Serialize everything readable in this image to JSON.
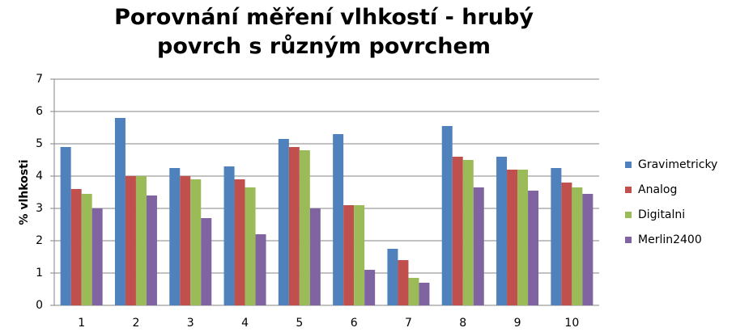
{
  "chart_data": {
    "type": "bar",
    "title": "Porovnání měření vlhkostí - hrubý povrch s různým povrchem",
    "y_label": "% vlhkosti",
    "categories": [
      "1",
      "2",
      "3",
      "4",
      "5",
      "6",
      "7",
      "8",
      "9",
      "10"
    ],
    "series": [
      {
        "name": "Gravimetricky",
        "color": "#4f81bd",
        "values": [
          4.9,
          5.8,
          4.25,
          4.3,
          5.15,
          5.3,
          1.75,
          5.55,
          4.6,
          4.25
        ]
      },
      {
        "name": "Analog",
        "color": "#c0504d",
        "values": [
          3.6,
          4.0,
          4.0,
          3.9,
          4.9,
          3.1,
          1.4,
          4.6,
          4.2,
          3.8
        ]
      },
      {
        "name": "Digitalni",
        "color": "#9bbb59",
        "values": [
          3.45,
          4.0,
          3.9,
          3.65,
          4.8,
          3.1,
          0.85,
          4.5,
          4.2,
          3.65
        ]
      },
      {
        "name": "Merlin2400",
        "color": "#8064a2",
        "values": [
          3.0,
          3.4,
          2.7,
          2.2,
          3.0,
          1.1,
          0.7,
          3.65,
          3.55,
          3.45
        ]
      }
    ],
    "ylim": [
      0,
      7
    ],
    "yticks": [
      0,
      1,
      2,
      3,
      4,
      5,
      6,
      7
    ],
    "grid": true,
    "legend": "right"
  }
}
